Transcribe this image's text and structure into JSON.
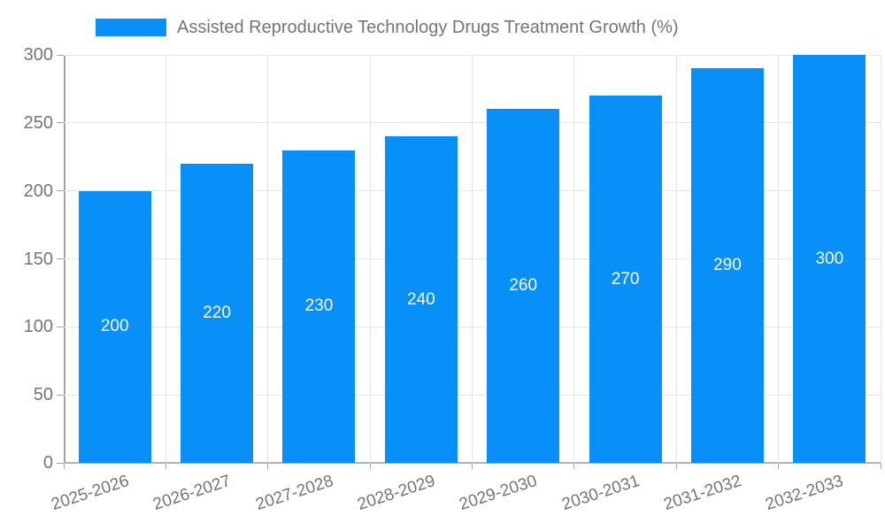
{
  "chart_data": {
    "type": "bar",
    "title": "Assisted Reproductive Technology Drugs Treatment Growth (%)",
    "categories": [
      "2025-2026",
      "2026-2027",
      "2027-2028",
      "2028-2029",
      "2029-2030",
      "2030-2031",
      "2031-2032",
      "2032-2033"
    ],
    "values": [
      200,
      220,
      230,
      240,
      260,
      270,
      290,
      300
    ],
    "yticks": [
      0,
      50,
      100,
      150,
      200,
      250,
      300
    ],
    "ylim": [
      0,
      300
    ],
    "xlabel": "",
    "ylabel": "",
    "legend_position": "top",
    "grid": true,
    "bar_color": "#0890f8",
    "value_label_color": "#ffffff",
    "axis_text_color": "#757575",
    "grid_color": "#e6e6e6",
    "axis_line_color": "#a3a3a3",
    "background_color": "#ffffff"
  },
  "legend": {
    "label": "Assisted Reproductive Technology Drugs Treatment Growth (%)"
  }
}
